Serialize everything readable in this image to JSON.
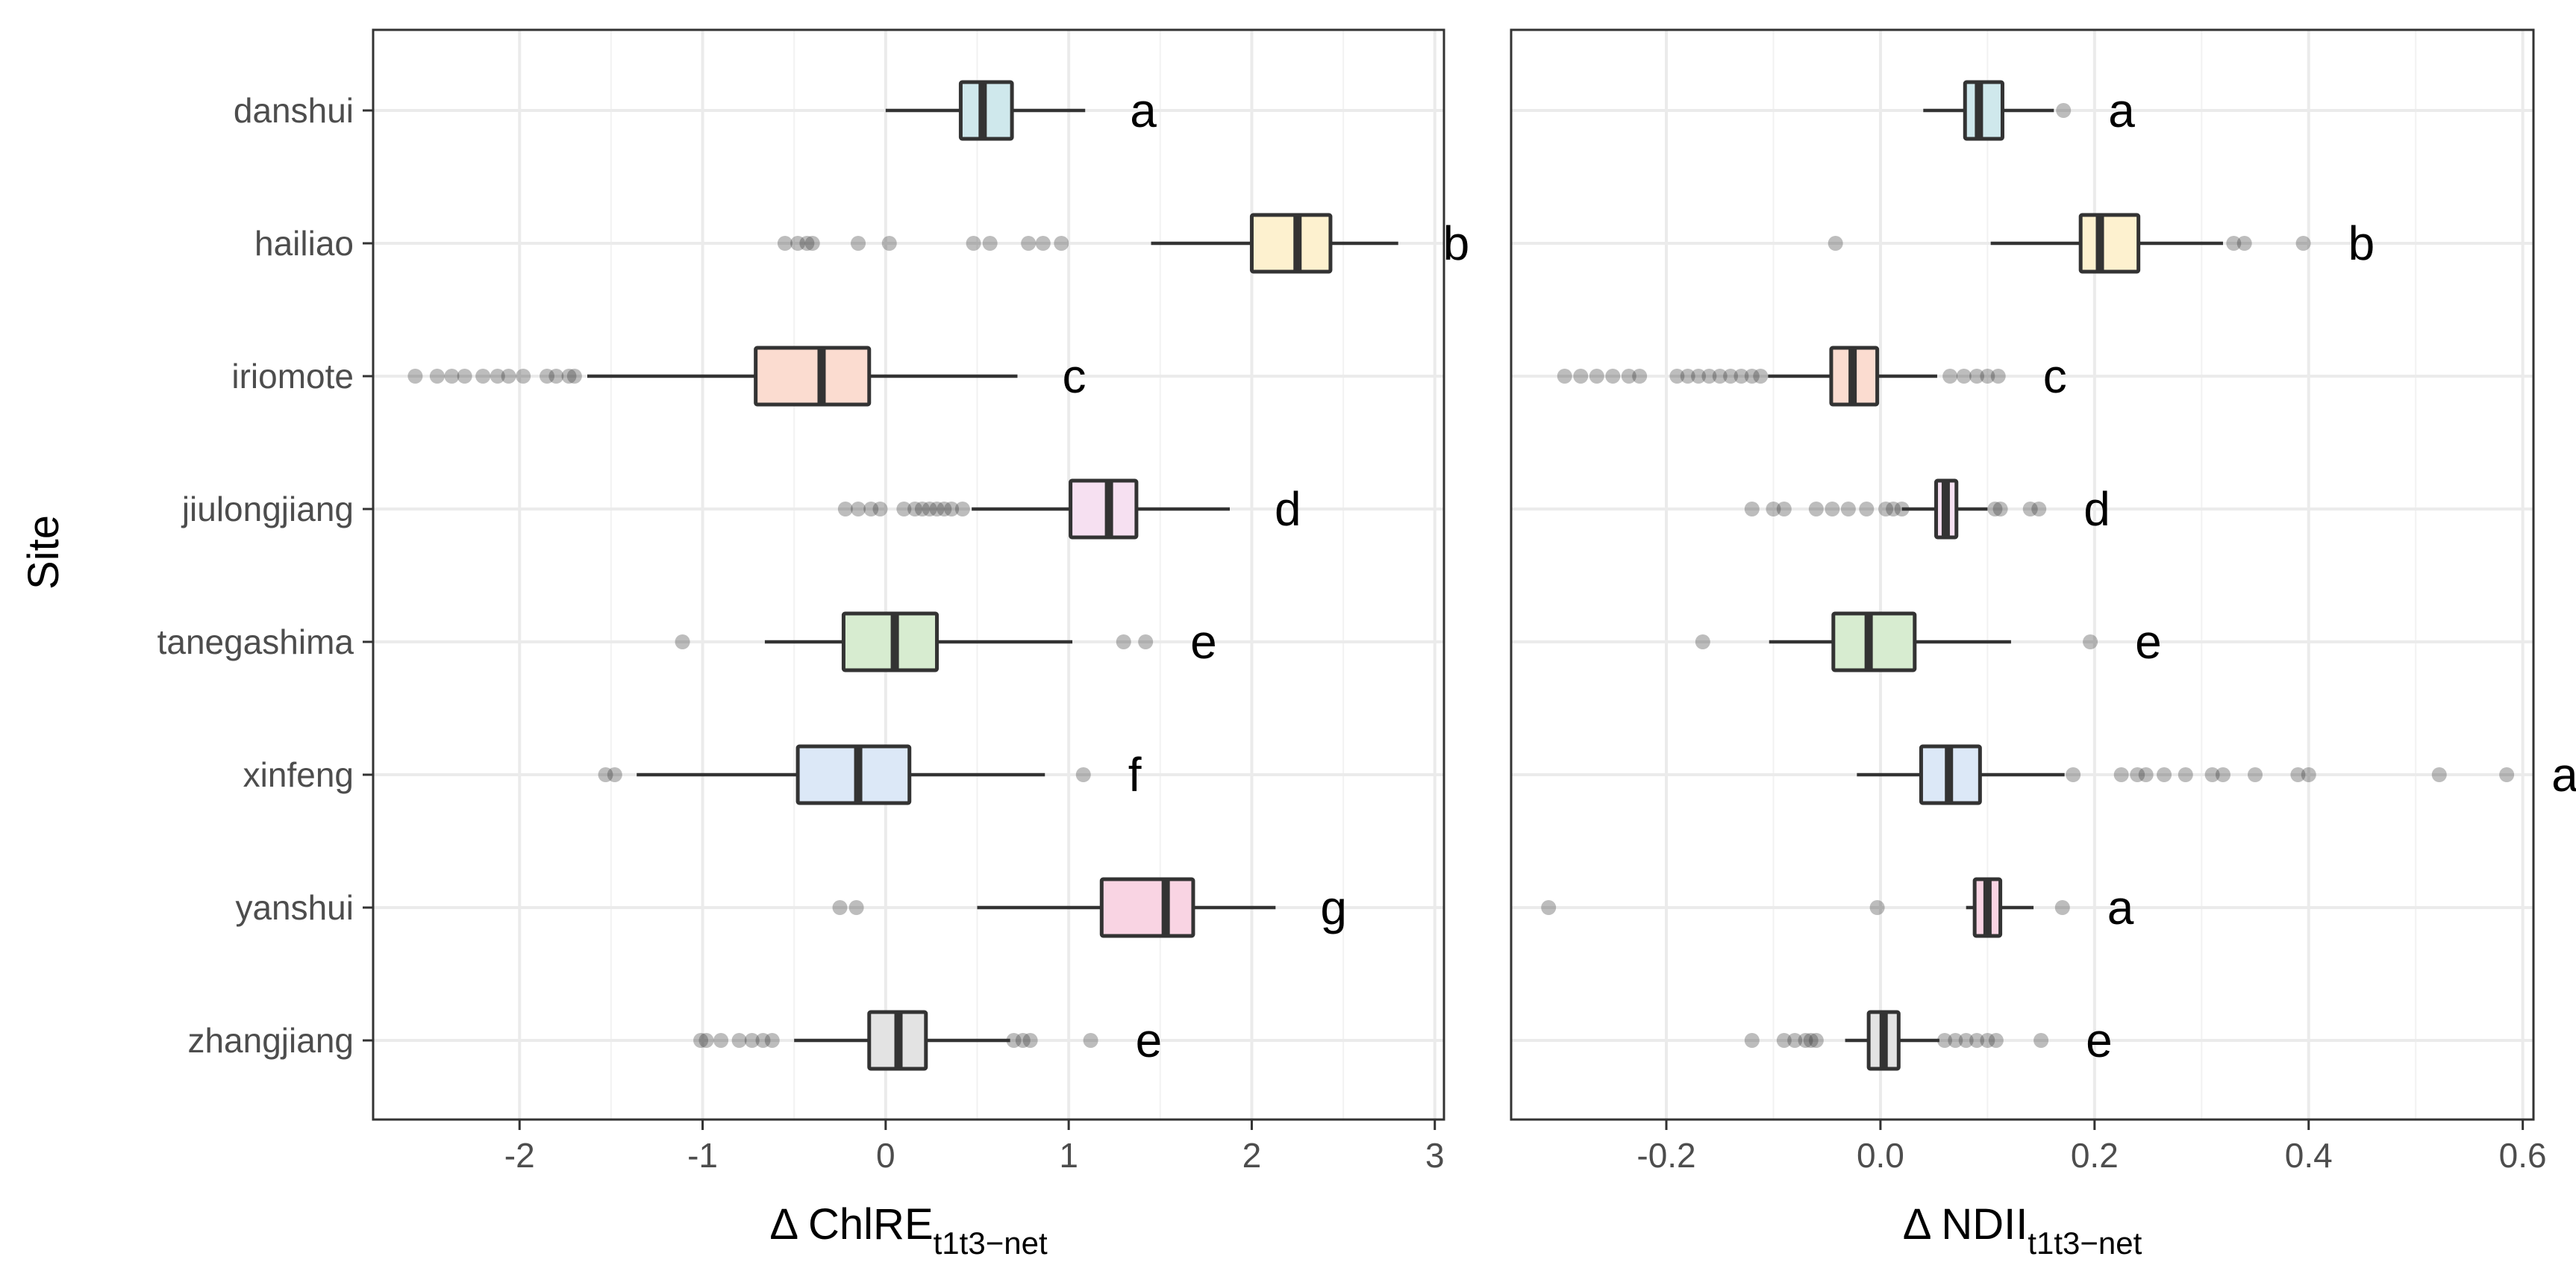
{
  "chart_data": {
    "type": "boxplot",
    "orientation": "horizontal",
    "y_axis_title": "Site",
    "sites": [
      "danshui",
      "hailiao",
      "iriomote",
      "jiulongjiang",
      "tanegashima",
      "xinfeng",
      "yanshui",
      "zhangjiang"
    ],
    "colors": {
      "danshui": "#cfe8ec",
      "hailiao": "#fdf1cf",
      "iriomote": "#fbdcd0",
      "jiulongjiang": "#f6e0f1",
      "tanegashima": "#d7ecd0",
      "xinfeng": "#dce8f7",
      "yanshui": "#f9d4e3",
      "zhangjiang": "#e3e3e3"
    },
    "panels": [
      {
        "id": "chlre",
        "xlabel_main": "Δ ChlRE",
        "xlabel_sub": "t1t3−net",
        "xlim": [
          -2.8,
          3.05
        ],
        "xticks": [
          -2,
          -1,
          0,
          1,
          2,
          3
        ],
        "xtick_labels": [
          "-2",
          "-1",
          "0",
          "1",
          "2",
          "3"
        ],
        "boxes": [
          {
            "site": "danshui",
            "whisker_low": 0.0,
            "q1": 0.41,
            "median": 0.53,
            "q3": 0.69,
            "whisker_high": 1.09,
            "outliers": [],
            "letter": "a"
          },
          {
            "site": "hailiao",
            "whisker_low": 1.45,
            "q1": 2.0,
            "median": 2.25,
            "q3": 2.43,
            "whisker_high": 2.8,
            "outliers": [
              -0.55,
              -0.48,
              -0.43,
              -0.4,
              -0.15,
              0.02,
              0.48,
              0.57,
              0.78,
              0.86,
              0.96
            ],
            "letter": "b"
          },
          {
            "site": "iriomote",
            "whisker_low": -1.63,
            "q1": -0.71,
            "median": -0.35,
            "q3": -0.09,
            "whisker_high": 0.72,
            "outliers": [
              -2.57,
              -2.45,
              -2.37,
              -2.3,
              -2.2,
              -2.12,
              -2.06,
              -1.98,
              -1.85,
              -1.8,
              -1.73,
              -1.7
            ],
            "letter": "c"
          },
          {
            "site": "jiulongjiang",
            "whisker_low": 0.47,
            "q1": 1.01,
            "median": 1.22,
            "q3": 1.37,
            "whisker_high": 1.88,
            "outliers": [
              -0.22,
              -0.15,
              -0.08,
              -0.03,
              0.1,
              0.16,
              0.2,
              0.24,
              0.28,
              0.32,
              0.36,
              0.42
            ],
            "letter": "d"
          },
          {
            "site": "tanegashima",
            "whisker_low": -0.66,
            "q1": -0.23,
            "median": 0.05,
            "q3": 0.28,
            "whisker_high": 1.02,
            "outliers": [
              -1.11,
              1.3,
              1.42
            ],
            "letter": "e"
          },
          {
            "site": "xinfeng",
            "whisker_low": -1.36,
            "q1": -0.48,
            "median": -0.15,
            "q3": 0.13,
            "whisker_high": 0.87,
            "outliers": [
              -1.53,
              -1.48,
              1.08
            ],
            "letter": "f"
          },
          {
            "site": "yanshui",
            "whisker_low": 0.5,
            "q1": 1.18,
            "median": 1.53,
            "q3": 1.68,
            "whisker_high": 2.13,
            "outliers": [
              -0.25,
              -0.16
            ],
            "letter": "g"
          },
          {
            "site": "zhangjiang",
            "whisker_low": -0.5,
            "q1": -0.09,
            "median": 0.07,
            "q3": 0.22,
            "whisker_high": 0.68,
            "outliers": [
              -1.01,
              -0.98,
              -0.9,
              -0.8,
              -0.73,
              -0.67,
              -0.62,
              0.7,
              0.75,
              0.79,
              1.12
            ],
            "letter": "e"
          }
        ]
      },
      {
        "id": "ndii",
        "xlabel_main": "Δ NDII",
        "xlabel_sub": "t1t3−net",
        "xlim": [
          -0.345,
          0.61
        ],
        "xticks": [
          -0.2,
          0.0,
          0.2,
          0.4,
          0.6
        ],
        "xtick_labels": [
          "-0.2",
          "0.0",
          "0.2",
          "0.4",
          "0.6"
        ],
        "boxes": [
          {
            "site": "danshui",
            "whisker_low": 0.04,
            "q1": 0.079,
            "median": 0.092,
            "q3": 0.114,
            "whisker_high": 0.162,
            "outliers": [
              0.171
            ],
            "letter": "a"
          },
          {
            "site": "hailiao",
            "whisker_low": 0.103,
            "q1": 0.187,
            "median": 0.205,
            "q3": 0.241,
            "whisker_high": 0.32,
            "outliers": [
              -0.042,
              0.33,
              0.34,
              0.395
            ],
            "letter": "b"
          },
          {
            "site": "iriomote",
            "whisker_low": -0.105,
            "q1": -0.046,
            "median": -0.026,
            "q3": -0.003,
            "whisker_high": 0.053,
            "outliers": [
              -0.295,
              -0.28,
              -0.265,
              -0.25,
              -0.235,
              -0.225,
              -0.19,
              -0.18,
              -0.17,
              -0.16,
              -0.15,
              -0.14,
              -0.13,
              -0.12,
              -0.112,
              0.065,
              0.078,
              0.09,
              0.1,
              0.11
            ],
            "letter": "c"
          },
          {
            "site": "jiulongjiang",
            "whisker_low": 0.02,
            "q1": 0.052,
            "median": 0.061,
            "q3": 0.071,
            "whisker_high": 0.1,
            "outliers": [
              -0.12,
              -0.1,
              -0.09,
              -0.06,
              -0.045,
              -0.03,
              -0.013,
              0.005,
              0.012,
              0.02,
              0.107,
              0.112,
              0.14,
              0.148
            ],
            "letter": "d"
          },
          {
            "site": "tanegashima",
            "whisker_low": -0.104,
            "q1": -0.044,
            "median": -0.011,
            "q3": 0.032,
            "whisker_high": 0.122,
            "outliers": [
              -0.166,
              0.196
            ],
            "letter": "e"
          },
          {
            "site": "xinfeng",
            "whisker_low": -0.022,
            "q1": 0.038,
            "median": 0.064,
            "q3": 0.093,
            "whisker_high": 0.172,
            "outliers": [
              0.18,
              0.225,
              0.24,
              0.248,
              0.265,
              0.285,
              0.31,
              0.32,
              0.35,
              0.39,
              0.4,
              0.522,
              0.585
            ],
            "letter": "a"
          },
          {
            "site": "yanshui",
            "whisker_low": 0.08,
            "q1": 0.088,
            "median": 0.1,
            "q3": 0.112,
            "whisker_high": 0.143,
            "outliers": [
              -0.31,
              -0.003,
              0.17
            ],
            "letter": "a"
          },
          {
            "site": "zhangjiang",
            "whisker_low": -0.033,
            "q1": -0.011,
            "median": 0.003,
            "q3": 0.017,
            "whisker_high": 0.055,
            "outliers": [
              -0.12,
              -0.09,
              -0.08,
              -0.07,
              -0.065,
              -0.06,
              0.06,
              0.07,
              0.08,
              0.09,
              0.1,
              0.108,
              0.15
            ],
            "letter": "e"
          }
        ]
      }
    ]
  }
}
